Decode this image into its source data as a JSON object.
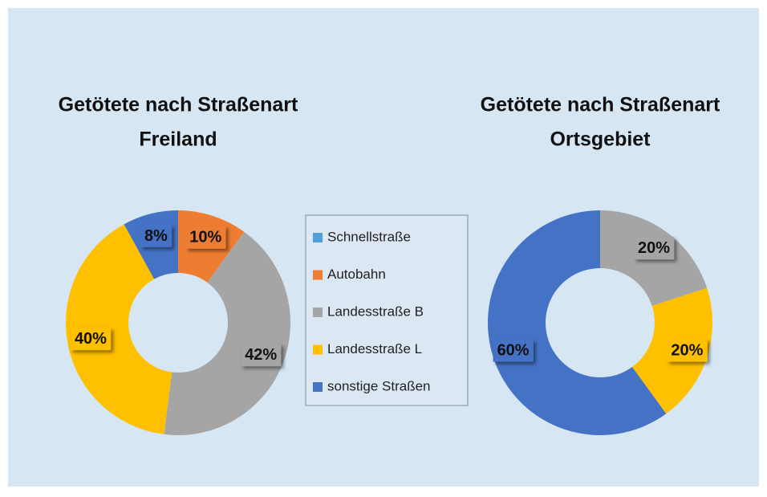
{
  "chart_data": {
    "type": "donut",
    "title": "Getötete nach Straßenart",
    "categories": [
      "Schnellstraße",
      "Autobahn",
      "Landesstraße B",
      "Landesstraße L",
      "sonstige Straßen"
    ],
    "colors": [
      "#4f9fd8",
      "#ed7d31",
      "#a5a5a5",
      "#ffc000",
      "#4472c4"
    ],
    "series": [
      {
        "name": "Freiland",
        "values": [
          0,
          10,
          42,
          40,
          8
        ],
        "value_labels": [
          null,
          "10%",
          "42%",
          "40%",
          "8%"
        ]
      },
      {
        "name": "Ortsgebiet",
        "values": [
          0,
          0,
          20,
          20,
          60
        ],
        "value_labels": [
          null,
          null,
          "20%",
          "20%",
          "60%"
        ]
      }
    ]
  }
}
